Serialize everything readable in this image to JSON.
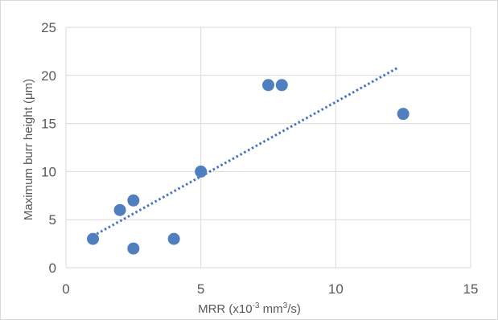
{
  "chart_data": {
    "type": "scatter",
    "xlabel": {
      "text": "MRR (x10-3 mm3/s)",
      "parts": [
        "MRR (x10",
        "-3",
        " mm",
        "3",
        "/s)"
      ]
    },
    "ylabel": "Maximum burr height (μm)",
    "xlim": [
      0,
      15
    ],
    "ylim": [
      0,
      25
    ],
    "xticks": [
      0,
      5,
      10,
      15
    ],
    "yticks": [
      0,
      5,
      10,
      15,
      20,
      25
    ],
    "grid": true,
    "legend": "none",
    "series": [
      {
        "x": [
          1,
          2,
          2.5,
          2.5,
          4,
          5,
          7.5,
          8,
          12.5
        ],
        "y": [
          3,
          6,
          7,
          2,
          3,
          10,
          19,
          19,
          16
        ],
        "marker_color": "#4f7fbf"
      }
    ],
    "trendline": {
      "type": "linear",
      "style": "dotted",
      "color": "#4472c4",
      "x_range": [
        1,
        12.3
      ],
      "y_at_range": [
        3.3,
        20.8
      ]
    },
    "gridline_color": "#d9d9d9"
  }
}
